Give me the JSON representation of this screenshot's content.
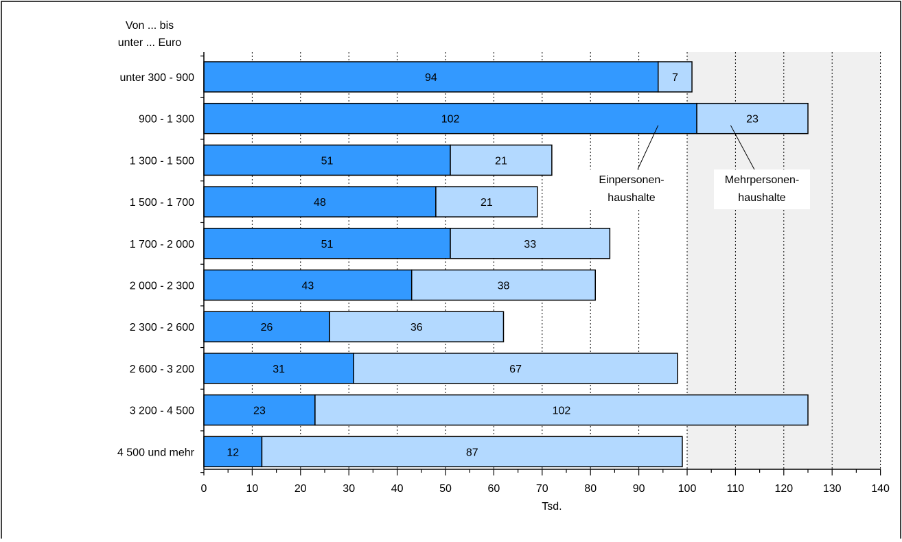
{
  "chart_data": {
    "type": "bar",
    "orientation": "horizontal",
    "stacked": true,
    "ylabel_lines": [
      "Von ... bis",
      "unter ... Euro"
    ],
    "xlabel": "Tsd.",
    "xlim": [
      0,
      140
    ],
    "xticks": [
      0,
      10,
      20,
      30,
      40,
      50,
      60,
      70,
      80,
      90,
      100,
      110,
      120,
      130,
      140
    ],
    "grid": "vertical dotted",
    "categories": [
      "unter 300 - 900",
      "900 - 1 300",
      "1 300 - 1 500",
      "1 500 - 1 700",
      "1 700 - 2 000",
      "2 000 - 2 300",
      "2 300 - 2 600",
      "2 600 - 3 200",
      "3 200 - 4 500",
      "4 500 und mehr"
    ],
    "series": [
      {
        "name": "Einpersonen-haushalte",
        "label_lines": [
          "Einpersonen-",
          "haushalte"
        ],
        "color": "#3399ff",
        "values": [
          94,
          102,
          51,
          48,
          51,
          43,
          26,
          31,
          23,
          12
        ]
      },
      {
        "name": "Mehrpersonen-haushalte",
        "label_lines": [
          "Mehrpersonen-",
          "haushalte"
        ],
        "color": "#b3d9ff",
        "values": [
          7,
          23,
          21,
          21,
          33,
          38,
          36,
          67,
          102,
          87
        ]
      }
    ],
    "annotations": [
      {
        "series": 0,
        "label_lines": [
          "Einpersonen-",
          "haushalte"
        ],
        "point": [
          94,
          1
        ]
      },
      {
        "series": 1,
        "label_lines": [
          "Mehrpersonen-",
          "haushalte"
        ],
        "point": [
          109,
          1
        ]
      }
    ]
  }
}
